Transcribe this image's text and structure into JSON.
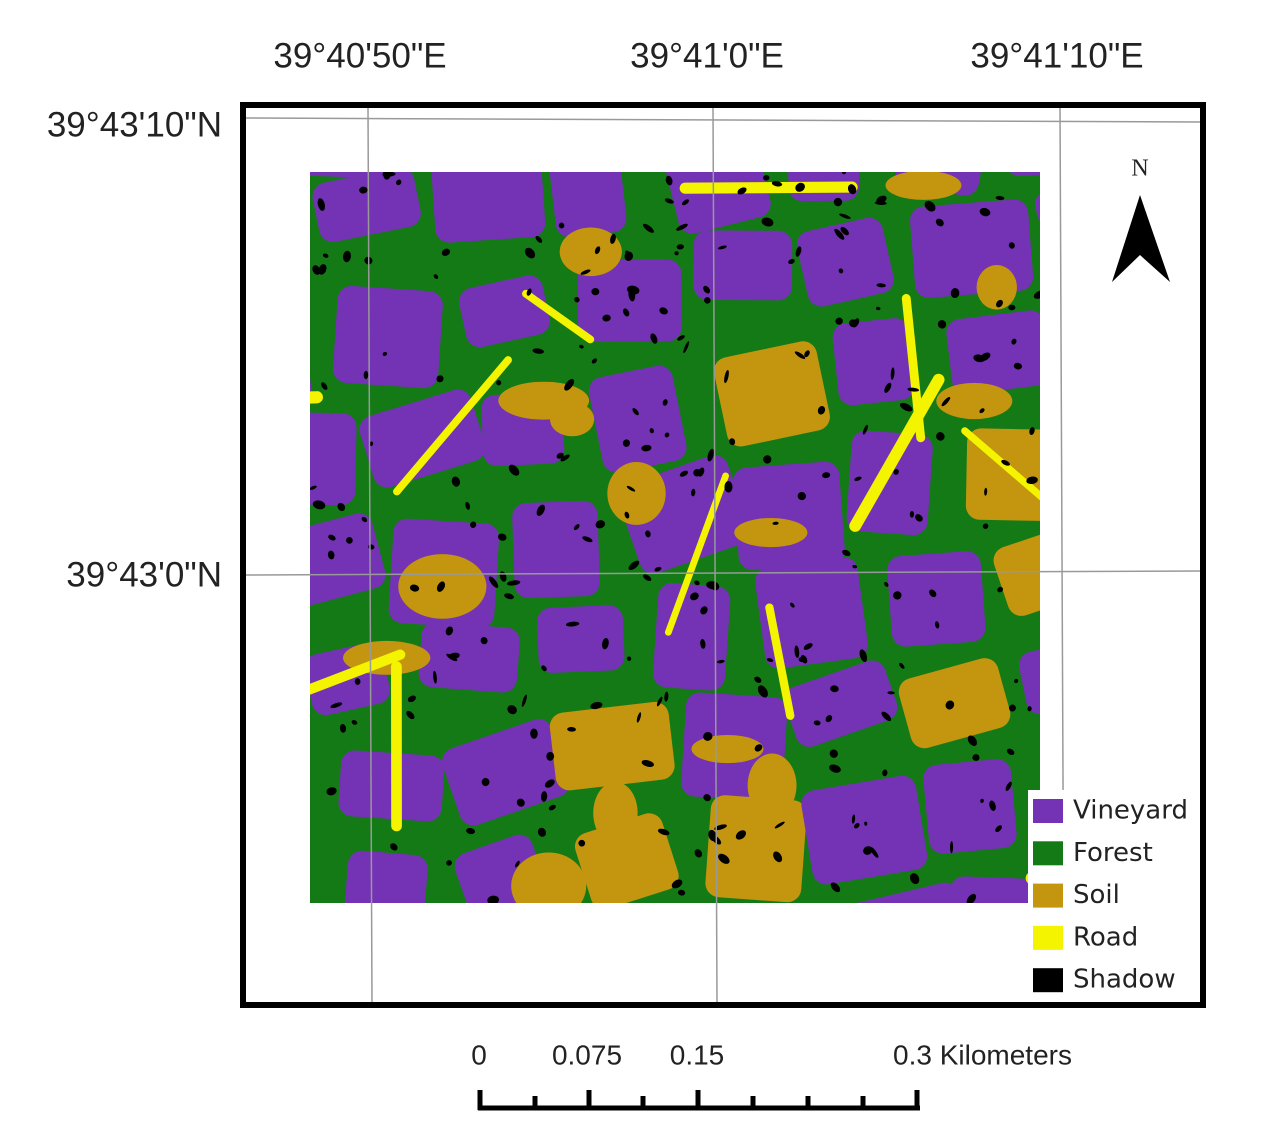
{
  "map": {
    "top_labels": [
      "39°40'50\"E",
      "39°41'0\"E",
      "39°41'10\"E"
    ],
    "left_labels": [
      "39°43'10\"N",
      "39°43'0\"N"
    ],
    "north": "N",
    "legend": [
      {
        "label": "Vineyard",
        "color": "#7433b4"
      },
      {
        "label": "Forest",
        "color": "#137a16"
      },
      {
        "label": "Soil",
        "color": "#c4950f"
      },
      {
        "label": "Road",
        "color": "#f4f400"
      },
      {
        "label": "Shadow",
        "color": "#000000"
      }
    ],
    "scale_bar": {
      "labels": [
        "0",
        "0.075",
        "0.15",
        "0.3 Kilometers"
      ]
    }
  }
}
